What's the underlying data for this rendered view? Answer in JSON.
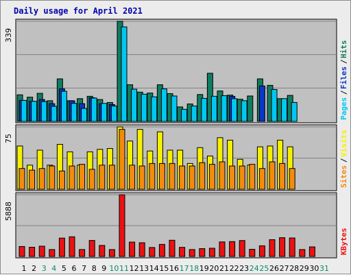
{
  "page": {
    "title": "Daily usage for April 2021"
  },
  "colors": {
    "background": "#ececec",
    "panel": "#c0c0c0",
    "title": "#0000aa",
    "hits": "#107c60",
    "files": "#0b36c6",
    "pages": "#00c7f2",
    "visits": "#f5f000",
    "sites": "#f28b0f",
    "kbytes": "#ea1212",
    "weekday_label": "#000000",
    "weekend_label": "#0a8a64"
  },
  "chart_data": [
    {
      "type": "bar",
      "name": "hits-files-pages",
      "categories": [
        "1",
        "2",
        "3",
        "4",
        "5",
        "6",
        "7",
        "8",
        "9",
        "10",
        "11",
        "12",
        "13",
        "14",
        "15",
        "16",
        "17",
        "18",
        "19",
        "20",
        "21",
        "22",
        "23",
        "24",
        "25",
        "26",
        "27",
        "28",
        "29",
        "30",
        "31"
      ],
      "weekend_days": [
        3,
        4,
        10,
        11,
        17,
        18,
        24,
        25,
        31
      ],
      "y_max_label": "339",
      "ylim": [
        0,
        339
      ],
      "legend": [
        {
          "label": "Pages",
          "color_key": "pages"
        },
        {
          "label": "Files",
          "color_key": "files"
        },
        {
          "label": "Hits",
          "color_key": "hits"
        }
      ],
      "series": [
        {
          "name": "Hits",
          "color_key": "hits",
          "values": [
            90,
            82,
            95,
            70,
            144,
            70,
            77,
            85,
            74,
            64,
            339,
            124,
            99,
            96,
            124,
            94,
            49,
            59,
            91,
            163,
            103,
            89,
            75,
            86,
            144,
            122,
            77,
            88,
            0,
            0,
            0
          ]
        },
        {
          "name": "Files",
          "color_key": "files",
          "values": [
            71,
            68,
            74,
            60,
            110,
            70,
            60,
            80,
            60,
            57,
            0,
            0,
            0,
            0,
            0,
            0,
            0,
            0,
            0,
            0,
            0,
            85,
            0,
            0,
            120,
            0,
            0,
            0,
            0,
            0,
            0
          ]
        },
        {
          "name": "Pages",
          "color_key": "pages",
          "values": [
            71,
            68,
            67,
            51,
            102,
            61,
            44,
            79,
            61,
            52,
            320,
            109,
            92,
            83,
            110,
            86,
            41,
            52,
            78,
            85,
            87,
            77,
            70,
            0,
            0,
            108,
            77,
            64,
            0,
            0,
            0
          ]
        }
      ]
    },
    {
      "type": "bar",
      "name": "visits-sites",
      "categories": [
        "1",
        "2",
        "3",
        "4",
        "5",
        "6",
        "7",
        "8",
        "9",
        "10",
        "11",
        "12",
        "13",
        "14",
        "15",
        "16",
        "17",
        "18",
        "19",
        "20",
        "21",
        "22",
        "23",
        "24",
        "25",
        "26",
        "27",
        "28",
        "29",
        "30",
        "31"
      ],
      "y_max_label": "75",
      "ylim": [
        0,
        75
      ],
      "legend": [
        {
          "label": "Sites",
          "color_key": "sites"
        },
        {
          "label": "Visits",
          "color_key": "visits"
        }
      ],
      "series": [
        {
          "name": "Visits",
          "color_key": "visits",
          "values": [
            52,
            29,
            47,
            29,
            54,
            45,
            29,
            45,
            48,
            49,
            75,
            58,
            72,
            46,
            69,
            47,
            47,
            31,
            50,
            40,
            62,
            59,
            36,
            29,
            51,
            52,
            59,
            51,
            0,
            0,
            0
          ]
        },
        {
          "name": "Sites",
          "color_key": "sites",
          "values": [
            25,
            23,
            25,
            28,
            22,
            28,
            30,
            24,
            29,
            29,
            72,
            29,
            28,
            31,
            31,
            31,
            28,
            28,
            32,
            30,
            33,
            28,
            28,
            30,
            25,
            33,
            31,
            25,
            0,
            0,
            0
          ]
        }
      ]
    },
    {
      "type": "bar",
      "name": "kbytes",
      "categories": [
        "1",
        "2",
        "3",
        "4",
        "5",
        "6",
        "7",
        "8",
        "9",
        "10",
        "11",
        "12",
        "13",
        "14",
        "15",
        "16",
        "17",
        "18",
        "19",
        "20",
        "21",
        "22",
        "23",
        "24",
        "25",
        "26",
        "27",
        "28",
        "29",
        "30",
        "31"
      ],
      "y_max_label": "5888",
      "ylim": [
        0,
        5888
      ],
      "legend": [
        {
          "label": "KBytes",
          "color_key": "kbytes"
        }
      ],
      "series": [
        {
          "name": "KBytes",
          "color_key": "kbytes",
          "values": [
            952,
            882,
            982,
            663,
            1755,
            1880,
            666,
            1531,
            1055,
            661,
            5888,
            1373,
            1313,
            859,
            1155,
            1550,
            873,
            663,
            751,
            787,
            1390,
            1421,
            1523,
            686,
            1020,
            1603,
            1795,
            1767,
            662,
            917,
            0
          ]
        }
      ]
    }
  ]
}
